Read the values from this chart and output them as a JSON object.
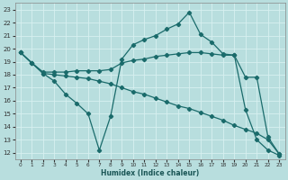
{
  "xlabel": "Humidex (Indice chaleur)",
  "xlim": [
    -0.5,
    23.5
  ],
  "ylim": [
    11.5,
    23.5
  ],
  "yticks": [
    12,
    13,
    14,
    15,
    16,
    17,
    18,
    19,
    20,
    21,
    22,
    23
  ],
  "xticks": [
    0,
    1,
    2,
    3,
    4,
    5,
    6,
    7,
    8,
    9,
    10,
    11,
    12,
    13,
    14,
    15,
    16,
    17,
    18,
    19,
    20,
    21,
    22,
    23
  ],
  "background_color": "#b8dede",
  "grid_color": "#d8f0f0",
  "line_color": "#1a6b6b",
  "line1_x": [
    0,
    1,
    2,
    3,
    4,
    5,
    6,
    7,
    8,
    9,
    10,
    11,
    12,
    13,
    14,
    15,
    16,
    17,
    18,
    19,
    20,
    21,
    22,
    23
  ],
  "line1_y": [
    19.7,
    18.9,
    18.1,
    17.5,
    16.5,
    15.8,
    15.0,
    12.2,
    14.8,
    19.2,
    20.3,
    20.7,
    21.0,
    21.5,
    21.9,
    22.8,
    21.1,
    20.5,
    19.6,
    19.5,
    15.3,
    13.0,
    12.2,
    11.8
  ],
  "line2_x": [
    0,
    1,
    2,
    3,
    4,
    5,
    6,
    7,
    8,
    9,
    10,
    11,
    12,
    13,
    14,
    15,
    16,
    17,
    18,
    19,
    20,
    21,
    22,
    23
  ],
  "line2_y": [
    19.7,
    18.9,
    18.2,
    18.2,
    18.2,
    18.3,
    18.3,
    18.3,
    18.4,
    18.9,
    19.1,
    19.2,
    19.4,
    19.5,
    19.6,
    19.7,
    19.7,
    19.6,
    19.5,
    19.5,
    17.8,
    17.8,
    13.2,
    11.9
  ],
  "line3_x": [
    0,
    1,
    2,
    3,
    4,
    5,
    6,
    7,
    8,
    9,
    10,
    11,
    12,
    13,
    14,
    15,
    16,
    17,
    18,
    19,
    20,
    21,
    22,
    23
  ],
  "line3_y": [
    19.7,
    18.9,
    18.1,
    18.0,
    17.9,
    17.8,
    17.7,
    17.5,
    17.3,
    17.0,
    16.7,
    16.5,
    16.2,
    15.9,
    15.6,
    15.4,
    15.1,
    14.8,
    14.5,
    14.1,
    13.8,
    13.5,
    13.0,
    11.9
  ]
}
